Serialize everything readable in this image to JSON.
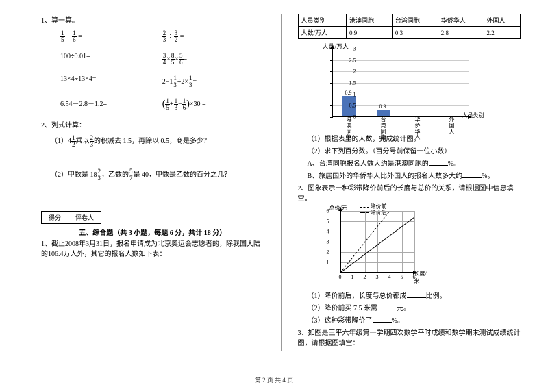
{
  "left": {
    "q1_title": "1、算一算。",
    "eq": {
      "a_lhs_n1": "1",
      "a_lhs_d1": "5",
      "a_lhs_n2": "1",
      "a_lhs_d2": "6",
      "b_lhs_n1": "2",
      "b_lhs_d1": "3",
      "b_lhs_n2": "3",
      "b_lhs_d2": "2",
      "c": "100÷0.01=",
      "d_n1": "3",
      "d_d1": "4",
      "d_n2": "8",
      "d_d2": "5",
      "d_n3": "5",
      "d_d3": "6",
      "e": "13×4÷13×4=",
      "f_whole": "2",
      "f_n1": "1",
      "f_d1": "3",
      "f_n2": "1",
      "f_d2": "3",
      "g": "6.54－2.8－1.2=",
      "h_n1": "1",
      "h_d1": "5",
      "h_n2": "1",
      "h_d2": "3",
      "h_n3": "1",
      "h_d3": "6"
    },
    "q2_title": "2、列式计算：",
    "q2_1a": "（1）4",
    "q2_1_fn1": "1",
    "q2_1_fd1": "2",
    "q2_1b": "乘以",
    "q2_1_fn2": "2",
    "q2_1_fd2": "3",
    "q2_1c": "的积减去 1.5，再除以 0.5，商是多少？",
    "q2_2a": "（2）甲数是 18",
    "q2_2_fn1": "2",
    "q2_2_fd1": "3",
    "q2_2b": "，乙数的",
    "q2_2_fn2": "5",
    "q2_2_fd2": "7",
    "q2_2c": "是 40，甲数是乙数的百分之几？",
    "score1": "得分",
    "score2": "评卷人",
    "section5": "五、综合题（共 3 小题，每题 6 分，共计 18 分）",
    "p1": "1、截止2008年3月31日，报名申请成为北京奥运会志愿者的，除我国大陆的106.4万人外，其它的报名人数如下表："
  },
  "right": {
    "table": {
      "h1": "人员类别",
      "h2": "港澳同胞",
      "h3": "台湾同胞",
      "h4": "华侨华人",
      "h5": "外国人",
      "r1": "人数/万人",
      "v1": "0.9",
      "v2": "0.3",
      "v3": "2.8",
      "v4": "2.2"
    },
    "chart1": {
      "ylabel": "人数/万人",
      "xlabel": "人员类别",
      "ticks": [
        "0",
        "0.5",
        "1",
        "1.5",
        "2",
        "2.5",
        "3"
      ],
      "cats": [
        "港澳同胞",
        "台湾同胞",
        "华侨华人",
        "外国人"
      ],
      "bars": [
        {
          "v": 0.9,
          "label": "0.9"
        },
        {
          "v": 0.3,
          "label": "0.3"
        }
      ],
      "ymax": 3
    },
    "q1_1": "（1）根据表里的人数，完成统计图。",
    "q1_2": "（2）求下列百分数。（百分号前保留一位小数）",
    "q1_A": "A、台湾同胞报名人数大约是港澳同胞的",
    "q1_Apct": "%。",
    "q1_B": "B、旅居国外的华侨华人比外国人的报名人数多大约",
    "q1_Bpct": "%。",
    "q2": "2、图象表示一种彩带降价前后的长度与总价的关系，请根据图中信息填空。",
    "chart2": {
      "ylabel": "总价/元",
      "xlabel": "长度/米",
      "legend_before": "降价前",
      "legend_after": "降价后",
      "yticks": [
        "1",
        "2",
        "3",
        "4",
        "5",
        "6"
      ],
      "xticks": [
        "0",
        "1",
        "2",
        "3",
        "4",
        "5",
        "6"
      ]
    },
    "q2_1": "（1）降价前后，长度与总价都成",
    "q2_1b": "比例。",
    "q2_2": "（2）降价前买 7.5 米需",
    "q2_2b": "元。",
    "q2_3": "（3）这种彩带降价了",
    "q2_3b": "%。",
    "q3": "3、如图是王平六年级第一学期四次数学平时成绩和数学期末测试成绩统计图，请根据图填空："
  },
  "footer": "第 2 页 共 4 页"
}
